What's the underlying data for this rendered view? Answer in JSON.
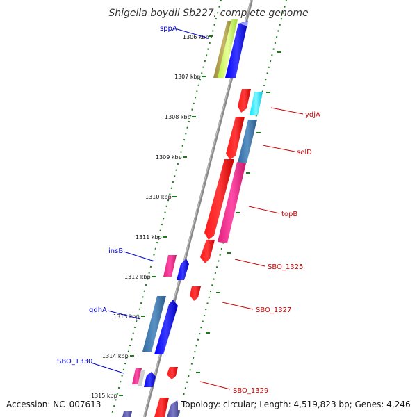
{
  "title": "Shigella boydii Sb227, complete genome",
  "ticks": [
    "1306 kbp",
    "1307 kbp",
    "1308 kbp",
    "1309 kbp",
    "1310 kbp",
    "1311 kbp",
    "1312 kbp",
    "1313 kbp",
    "1314 kbp",
    "1315 kbp"
  ],
  "genes": {
    "sppA": "sppA",
    "ydjA": "ydjA",
    "selD": "selD",
    "topB": "topB",
    "sbo1325": "SBO_1325",
    "insB": "insB",
    "sbo1327": "SBO_1327",
    "gdhA": "gdhA",
    "sbo1330": "SBO_1330",
    "sbo1329": "SBO_1329"
  },
  "footer": {
    "accession": "Accession: NC_007613",
    "topology": "Topology: circular; Length: 4,519,823 bp; Genes: 4,246"
  },
  "colors": {
    "forward_label": "#0000cc",
    "reverse_label": "#cc0000",
    "backbone": "#8a8a8a",
    "dotted_track": "#1a7a1a"
  }
}
